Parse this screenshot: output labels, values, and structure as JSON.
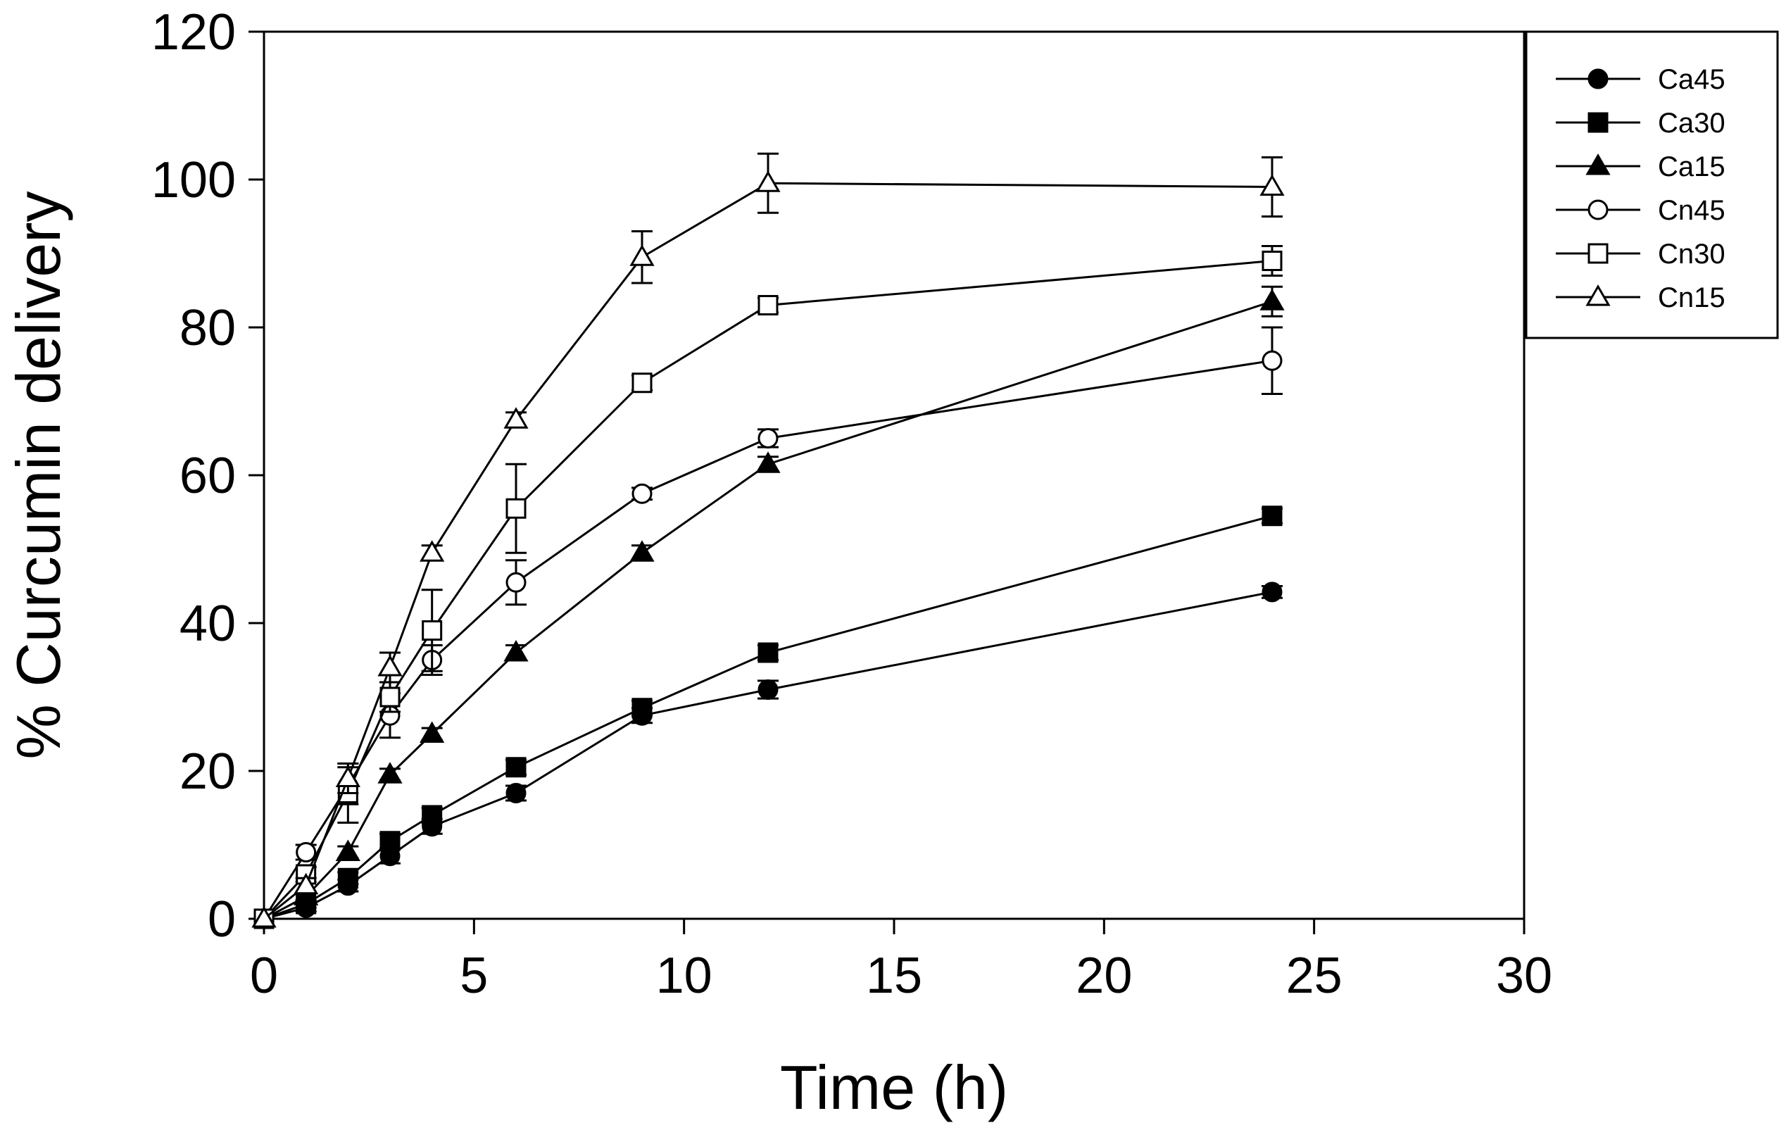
{
  "chart_data": {
    "type": "line",
    "title": "",
    "xlabel": "Time (h)",
    "ylabel": "% Curcumin delivery",
    "xlim": [
      0,
      30
    ],
    "ylim": [
      0,
      120
    ],
    "x_ticks": [
      0,
      5,
      10,
      15,
      20,
      25,
      30
    ],
    "y_ticks": [
      0,
      20,
      40,
      60,
      80,
      100,
      120
    ],
    "x": [
      0,
      1,
      2,
      3,
      4,
      6,
      9,
      12,
      24
    ],
    "grid": false,
    "legend_position": "top-right",
    "series": [
      {
        "name": "Ca45",
        "marker": "circle",
        "filled": true,
        "values": [
          0,
          1.5,
          4.5,
          8.5,
          12.5,
          17,
          27.5,
          31,
          44.2
        ],
        "errors": [
          0,
          0.5,
          0.8,
          1,
          1,
          1,
          1,
          1.2,
          0.8
        ]
      },
      {
        "name": "Ca30",
        "marker": "square",
        "filled": true,
        "values": [
          0,
          2,
          5.5,
          10.5,
          14,
          20.5,
          28.5,
          36,
          54.5
        ],
        "errors": [
          0,
          0.5,
          0.8,
          1,
          1,
          1,
          1,
          1,
          1
        ]
      },
      {
        "name": "Ca15",
        "marker": "triangle",
        "filled": true,
        "values": [
          0,
          3,
          9,
          19.5,
          25,
          36,
          49.5,
          61.5,
          83.5
        ],
        "errors": [
          0,
          0.5,
          0.8,
          0.8,
          0.8,
          1,
          1,
          1,
          2
        ]
      },
      {
        "name": "Cn45",
        "marker": "circle",
        "filled": false,
        "values": [
          0,
          9,
          18,
          27.5,
          35,
          45.5,
          57.5,
          65,
          75.5
        ],
        "errors": [
          0,
          1,
          2.5,
          3,
          2,
          3,
          0.8,
          1.2,
          4.5
        ]
      },
      {
        "name": "Cn30",
        "marker": "square",
        "filled": false,
        "values": [
          0,
          6,
          17,
          30,
          39,
          55.5,
          72.5,
          83,
          89
        ],
        "errors": [
          0,
          1,
          4,
          2,
          5.5,
          6,
          1,
          1,
          2
        ]
      },
      {
        "name": "Cn15",
        "marker": "triangle",
        "filled": false,
        "values": [
          0,
          4.5,
          19,
          34,
          49.5,
          67.5,
          89.5,
          99.5,
          99
        ],
        "errors": [
          0,
          1,
          2,
          2,
          1,
          1,
          3.5,
          4,
          4
        ]
      }
    ]
  }
}
